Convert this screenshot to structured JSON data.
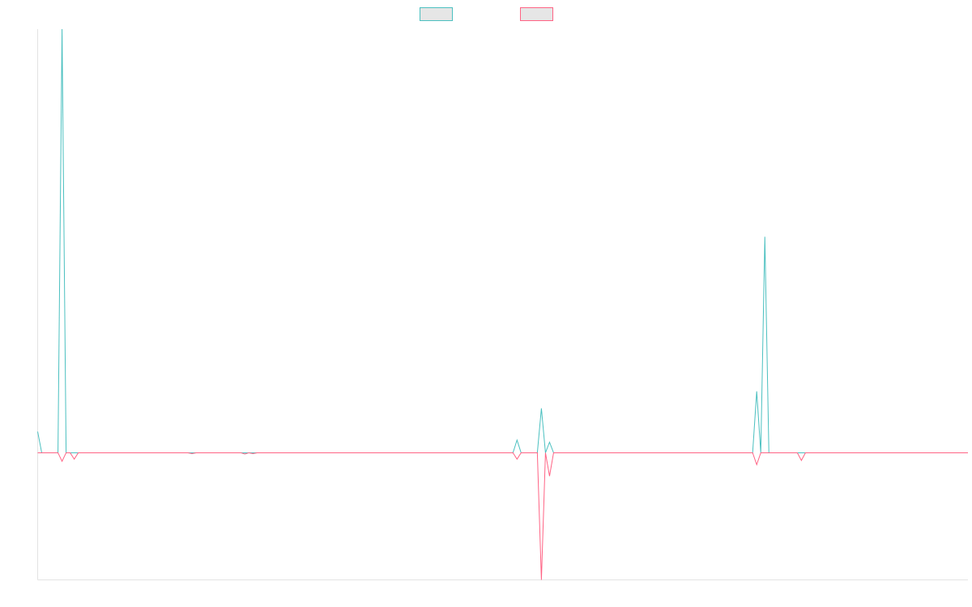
{
  "chart_data": {
    "type": "line",
    "title": "",
    "xlabel": "",
    "ylabel": "",
    "grid": false,
    "legend_placement": "top-center",
    "ylim": [
      -3.0,
      10.0
    ],
    "x": [
      0,
      1,
      2,
      3,
      4,
      5,
      6,
      7,
      8,
      9,
      10,
      11,
      12,
      13,
      14,
      15,
      16,
      17,
      18,
      19,
      20,
      21,
      22,
      23,
      24,
      25,
      26,
      27,
      28,
      29,
      30,
      31,
      32,
      33,
      34,
      35,
      36,
      37,
      38,
      39,
      40,
      41,
      42,
      43,
      44,
      45,
      46,
      47,
      48,
      49,
      50,
      51,
      52,
      53,
      54,
      55,
      56,
      57,
      58,
      59,
      60,
      61,
      62,
      63,
      64,
      65,
      66,
      67,
      68,
      69,
      70,
      71,
      72,
      73,
      74,
      75,
      76,
      77,
      78,
      79,
      80,
      81,
      82,
      83,
      84,
      85,
      86,
      87,
      88,
      89,
      90,
      91,
      92,
      93,
      94,
      95,
      96,
      97,
      98,
      99,
      100,
      101,
      102,
      103,
      104,
      105,
      106,
      107,
      108,
      109,
      110,
      111,
      112,
      113,
      114,
      115,
      116,
      117,
      118,
      119,
      120,
      121,
      122,
      123,
      124,
      125,
      126,
      127,
      128,
      129,
      130,
      131,
      132,
      133,
      134,
      135,
      136,
      137,
      138,
      139,
      140,
      141,
      142,
      143,
      144,
      145,
      146,
      147,
      148,
      149,
      150,
      151,
      152,
      153,
      154,
      155,
      156,
      157,
      158,
      159,
      160,
      161,
      162,
      163,
      164,
      165,
      166,
      167,
      168,
      169,
      170,
      171,
      172,
      173,
      174,
      175,
      176,
      177,
      178,
      179,
      180,
      181,
      182,
      183,
      184,
      185,
      186,
      187,
      188,
      189,
      190,
      191,
      192,
      193,
      194,
      195,
      196,
      197,
      198,
      199,
      200,
      201,
      202,
      203,
      204,
      205,
      206,
      207,
      208,
      209,
      210,
      211,
      212,
      213,
      214,
      215,
      216,
      217,
      218,
      219,
      220,
      221,
      222,
      223,
      224,
      225,
      226,
      227,
      228,
      229
    ],
    "series": [
      {
        "name": "",
        "color": "#4bc0c0",
        "values": [
          0.5,
          0.0,
          0.0,
          0.0,
          0.0,
          0.0,
          10.0,
          0.0,
          0.0,
          0.0,
          0.0,
          0.0,
          0.0,
          0.0,
          0.0,
          0.0,
          0.0,
          0.0,
          0.0,
          0.0,
          0.0,
          0.0,
          0.0,
          0.0,
          0.0,
          0.0,
          0.0,
          0.0,
          0.0,
          0.0,
          0.0,
          0.0,
          0.0,
          0.0,
          0.0,
          0.0,
          0.0,
          0.0,
          0.0,
          0.0,
          0.0,
          0.0,
          0.0,
          0.0,
          0.0,
          0.0,
          0.0,
          0.0,
          0.0,
          0.0,
          0.0,
          0.0,
          0.0,
          0.0,
          0.0,
          0.0,
          0.0,
          0.0,
          0.0,
          0.0,
          0.0,
          0.0,
          0.0,
          0.0,
          0.0,
          0.0,
          0.0,
          0.0,
          0.0,
          0.0,
          0.0,
          0.0,
          0.0,
          0.0,
          0.0,
          0.0,
          0.0,
          0.0,
          0.0,
          0.0,
          0.0,
          0.0,
          0.0,
          0.0,
          0.0,
          0.0,
          0.0,
          0.0,
          0.0,
          0.0,
          0.0,
          0.0,
          0.0,
          0.0,
          0.0,
          0.0,
          0.0,
          0.0,
          0.0,
          0.0,
          0.0,
          0.0,
          0.0,
          0.0,
          0.0,
          0.0,
          0.0,
          0.0,
          0.0,
          0.0,
          0.0,
          0.0,
          0.0,
          0.0,
          0.0,
          0.0,
          0.0,
          0.0,
          0.3,
          0.0,
          0.0,
          0.0,
          0.0,
          0.0,
          1.05,
          0.0,
          0.25,
          0.0,
          0.0,
          0.0,
          0.0,
          0.0,
          0.0,
          0.0,
          0.0,
          0.0,
          0.0,
          0.0,
          0.0,
          0.0,
          0.0,
          0.0,
          0.0,
          0.0,
          0.0,
          0.0,
          0.0,
          0.0,
          0.0,
          0.0,
          0.0,
          0.0,
          0.0,
          0.0,
          0.0,
          0.0,
          0.0,
          0.0,
          0.0,
          0.0,
          0.0,
          0.0,
          0.0,
          0.0,
          0.0,
          0.0,
          0.0,
          0.0,
          0.0,
          0.0,
          0.0,
          0.0,
          0.0,
          0.0,
          0.0,
          0.0,
          0.0,
          1.45,
          0.0,
          5.1,
          0.0,
          0.0,
          0.0,
          0.0,
          0.0,
          0.0,
          0.0,
          0.0,
          0.0,
          0.0,
          0.0,
          0.0,
          0.0,
          0.0,
          0.0,
          0.0,
          0.0,
          0.0,
          0.0,
          0.0,
          0.0,
          0.0,
          0.0,
          0.0,
          0.0,
          0.0,
          0.0,
          0.0,
          0.0,
          0.0,
          0.0,
          0.0,
          0.0,
          0.0,
          0.0,
          0.0,
          0.0,
          0.0,
          0.0,
          0.0,
          0.0,
          0.0,
          0.0,
          0.0,
          0.0,
          0.0,
          0.0,
          0.0,
          0.0,
          0.0
        ]
      },
      {
        "name": "",
        "color": "#ff6384",
        "values": [
          0.0,
          0.0,
          0.0,
          0.0,
          0.0,
          0.0,
          -0.2,
          0.0,
          0.0,
          -0.15,
          0.0,
          0.0,
          0.0,
          0.0,
          0.0,
          0.0,
          0.0,
          0.0,
          0.0,
          0.0,
          0.0,
          0.0,
          0.0,
          0.0,
          0.0,
          0.0,
          0.0,
          0.0,
          0.0,
          0.0,
          0.0,
          0.0,
          0.0,
          0.0,
          0.0,
          0.0,
          0.0,
          0.0,
          -0.02,
          0.0,
          0.0,
          0.0,
          0.0,
          0.0,
          0.0,
          0.0,
          0.0,
          0.0,
          0.0,
          0.0,
          0.0,
          -0.03,
          0.0,
          -0.02,
          0.0,
          0.0,
          0.0,
          0.0,
          0.0,
          0.0,
          0.0,
          0.0,
          0.0,
          0.0,
          0.0,
          0.0,
          0.0,
          0.0,
          0.0,
          0.0,
          0.0,
          0.0,
          0.0,
          0.0,
          0.0,
          0.0,
          0.0,
          0.0,
          0.0,
          0.0,
          0.0,
          0.0,
          0.0,
          0.0,
          0.0,
          0.0,
          0.0,
          0.0,
          0.0,
          0.0,
          0.0,
          0.0,
          0.0,
          0.0,
          0.0,
          0.0,
          0.0,
          0.0,
          0.0,
          0.0,
          0.0,
          0.0,
          0.0,
          0.0,
          0.0,
          0.0,
          0.0,
          0.0,
          0.0,
          0.0,
          0.0,
          0.0,
          0.0,
          0.0,
          0.0,
          0.0,
          0.0,
          0.0,
          -0.15,
          0.0,
          0.0,
          0.0,
          0.0,
          0.0,
          -3.0,
          0.0,
          -0.55,
          0.0,
          0.0,
          0.0,
          0.0,
          0.0,
          0.0,
          0.0,
          0.0,
          0.0,
          0.0,
          0.0,
          0.0,
          0.0,
          0.0,
          0.0,
          0.0,
          0.0,
          0.0,
          0.0,
          0.0,
          0.0,
          0.0,
          0.0,
          0.0,
          0.0,
          0.0,
          0.0,
          0.0,
          0.0,
          0.0,
          0.0,
          0.0,
          0.0,
          0.0,
          0.0,
          0.0,
          0.0,
          0.0,
          0.0,
          0.0,
          0.0,
          0.0,
          0.0,
          0.0,
          0.0,
          0.0,
          0.0,
          0.0,
          0.0,
          0.0,
          -0.28,
          0.0,
          0.0,
          0.0,
          0.0,
          0.0,
          0.0,
          0.0,
          0.0,
          0.0,
          0.0,
          -0.18,
          0.0,
          0.0,
          0.0,
          0.0,
          0.0,
          0.0,
          0.0,
          0.0,
          0.0,
          0.0,
          0.0,
          0.0,
          0.0,
          0.0,
          0.0,
          0.0,
          0.0,
          0.0,
          0.0,
          0.0,
          0.0,
          0.0,
          0.0,
          0.0,
          0.0,
          0.0,
          0.0,
          0.0,
          0.0,
          0.0,
          0.0,
          0.0,
          0.0,
          0.0,
          0.0,
          0.0,
          0.0,
          0.0,
          0.0,
          0.0,
          0.0
        ]
      }
    ],
    "legend": [
      {
        "label": "",
        "color": "#4bc0c0"
      },
      {
        "label": "",
        "color": "#ff6384"
      }
    ]
  }
}
